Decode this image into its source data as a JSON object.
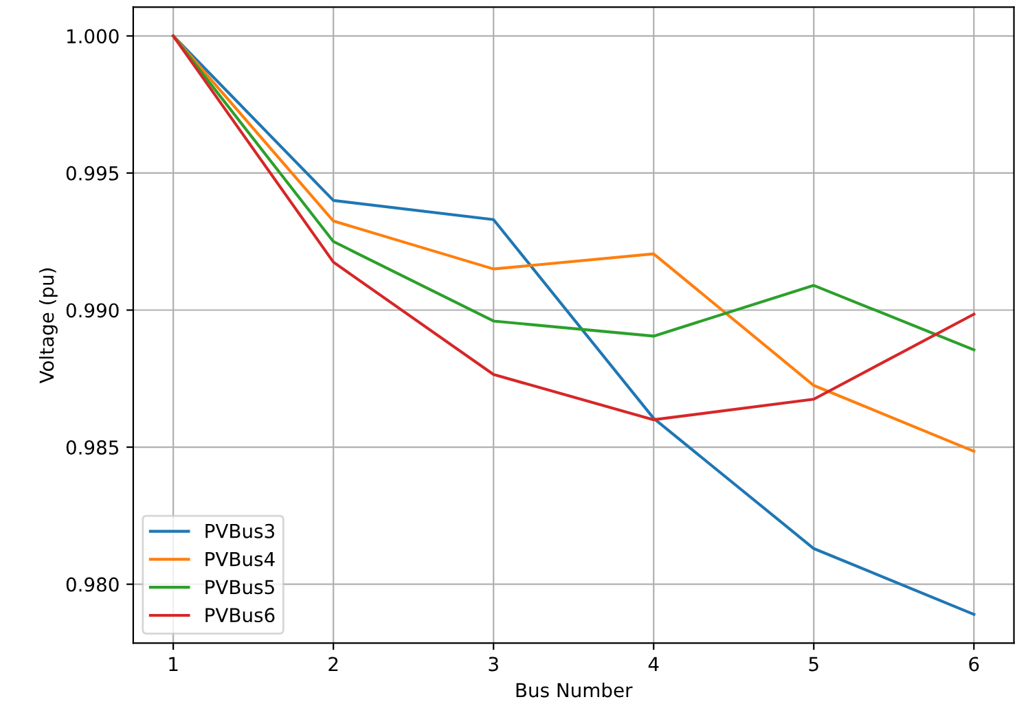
{
  "chart_data": {
    "type": "line",
    "xlabel": "Bus Number",
    "ylabel": "Voltage (pu)",
    "x": [
      1,
      2,
      3,
      4,
      5,
      6
    ],
    "series": [
      {
        "name": "PVBus3",
        "color": "#1f77b4",
        "values": [
          1.0,
          0.994,
          0.9933,
          0.98605,
          0.9813,
          0.9789
        ]
      },
      {
        "name": "PVBus4",
        "color": "#ff7f0e",
        "values": [
          1.0,
          0.99325,
          0.9915,
          0.99205,
          0.98725,
          0.98485
        ]
      },
      {
        "name": "PVBus5",
        "color": "#2ca02c",
        "values": [
          1.0,
          0.9925,
          0.9896,
          0.98905,
          0.9909,
          0.98855
        ]
      },
      {
        "name": "PVBus6",
        "color": "#d62728",
        "values": [
          1.0,
          0.99175,
          0.98765,
          0.986,
          0.98675,
          0.98985
        ]
      }
    ],
    "xlim": [
      0.75,
      6.25
    ],
    "xticks": [
      1,
      2,
      3,
      4,
      5,
      6
    ],
    "ylim": [
      0.97785,
      1.00105
    ],
    "yticks": [
      {
        "value": 0.98,
        "label": "0.980"
      },
      {
        "value": 0.985,
        "label": "0.985"
      },
      {
        "value": 0.99,
        "label": "0.990"
      },
      {
        "value": 0.995,
        "label": "0.995"
      },
      {
        "value": 1.0,
        "label": "1.000"
      }
    ],
    "grid": true,
    "legend": "bottom left",
    "line_style": "solid",
    "marker": "none"
  }
}
